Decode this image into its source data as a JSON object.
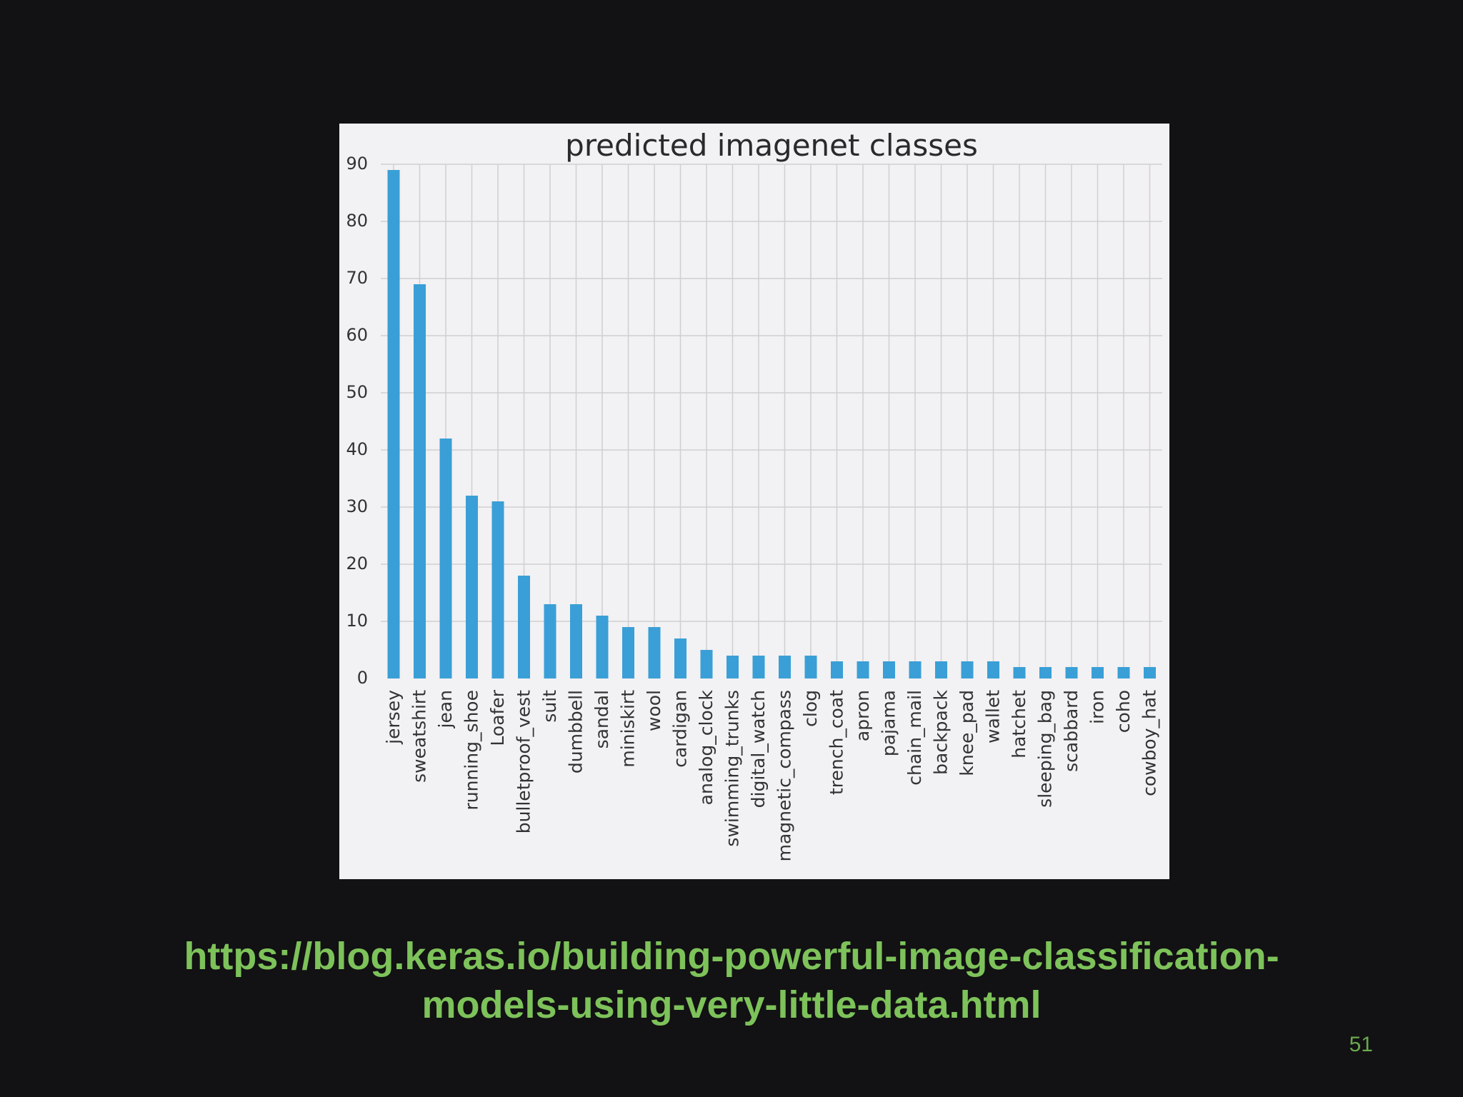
{
  "chart_data": {
    "type": "bar",
    "title": "predicted imagenet classes",
    "xlabel": "",
    "ylabel": "",
    "ylim": [
      0,
      90
    ],
    "yticks": [
      0,
      10,
      20,
      30,
      40,
      50,
      60,
      70,
      80,
      90
    ],
    "grid": true,
    "bar_color": "#3a9fd6",
    "categories": [
      "jersey",
      "sweatshirt",
      "jean",
      "running_shoe",
      "Loafer",
      "bulletproof_vest",
      "suit",
      "dumbbell",
      "sandal",
      "miniskirt",
      "wool",
      "cardigan",
      "analog_clock",
      "swimming_trunks",
      "digital_watch",
      "magnetic_compass",
      "clog",
      "trench_coat",
      "apron",
      "pajama",
      "chain_mail",
      "backpack",
      "knee_pad",
      "wallet",
      "hatchet",
      "sleeping_bag",
      "scabbard",
      "iron",
      "coho",
      "cowboy_hat"
    ],
    "values": [
      89,
      69,
      42,
      32,
      31,
      18,
      13,
      13,
      11,
      9,
      9,
      7,
      5,
      4,
      4,
      4,
      4,
      3,
      3,
      3,
      3,
      3,
      3,
      3,
      2,
      2,
      2,
      2,
      2,
      2
    ]
  },
  "link": {
    "line1": "https://blog.keras.io/building-powerful-image-classification-",
    "line2": "models-using-very-little-data.html"
  },
  "page_number": "51",
  "colors": {
    "background": "#121113",
    "link": "#7dc25a",
    "page_number": "#6aa84f",
    "panel": "#f2f1f3"
  }
}
